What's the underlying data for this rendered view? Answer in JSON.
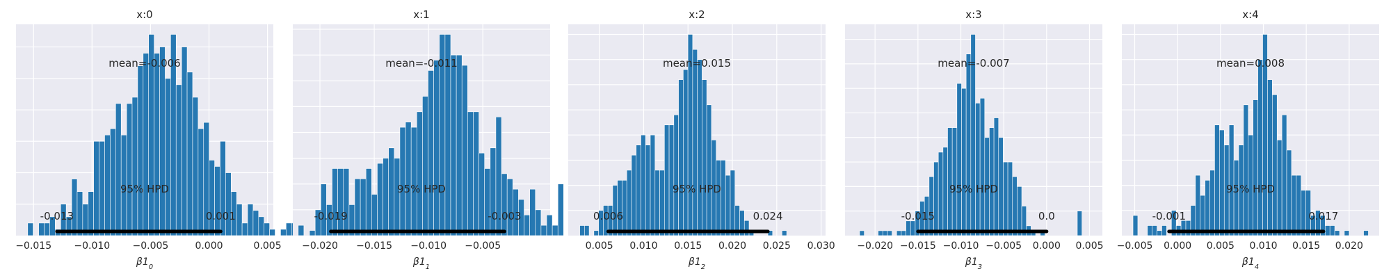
{
  "chart_data": [
    {
      "type": "bar",
      "title": "x:0",
      "xlabel": "β1",
      "xlabel_sub": "0",
      "xlim": [
        -0.0165,
        0.0055
      ],
      "xticks": [
        -0.015,
        -0.01,
        -0.005,
        0.0,
        0.005
      ],
      "xtick_labels": [
        "−0.015",
        "−0.010",
        "−0.005",
        "0.000",
        "0.005"
      ],
      "mean_label": "mean=-0.006",
      "hpd_label": "95% HPD",
      "hpd": [
        -0.013,
        0.001
      ],
      "hpd_low_label": "-0.013",
      "hpd_high_label": "0.001",
      "bins": {
        "start": -0.0155,
        "width": 0.00047,
        "counts": [
          2,
          0,
          2,
          2,
          3,
          1,
          5,
          3,
          9,
          7,
          5,
          7,
          15,
          15,
          16,
          17,
          21,
          16,
          21,
          22,
          27,
          29,
          32,
          29,
          30,
          25,
          32,
          24,
          30,
          26,
          22,
          17,
          18,
          12,
          11,
          15,
          10,
          7,
          5,
          2,
          5,
          4,
          3,
          2,
          1,
          0,
          1,
          2,
          2
        ]
      }
    },
    {
      "type": "bar",
      "title": "x:1",
      "xlabel": "β1",
      "xlabel_sub": "1",
      "xlim": [
        -0.0225,
        0.0012
      ],
      "xticks": [
        -0.02,
        -0.015,
        -0.01,
        -0.005
      ],
      "xtick_labels": [
        "−0.020",
        "−0.015",
        "−0.010",
        "−0.005"
      ],
      "mean_label": "mean=-0.011",
      "hpd_label": "95% HPD",
      "hpd": [
        -0.019,
        -0.003
      ],
      "hpd_low_label": "-0.019",
      "hpd_high_label": "-0.003",
      "bins": {
        "start": -0.022,
        "width": 0.00052,
        "counts": [
          2,
          0,
          1,
          5,
          10,
          6,
          13,
          13,
          13,
          6,
          11,
          11,
          13,
          8,
          14,
          15,
          17,
          15,
          21,
          22,
          21,
          24,
          27,
          32,
          34,
          39,
          39,
          35,
          35,
          33,
          24,
          24,
          16,
          13,
          17,
          23,
          12,
          11,
          9,
          7,
          4,
          9,
          5,
          2,
          4,
          2,
          10
        ]
      }
    },
    {
      "type": "bar",
      "title": "x:2",
      "xlabel": "β1",
      "xlabel_sub": "2",
      "xlim": [
        0.0015,
        0.0305
      ],
      "xticks": [
        0.005,
        0.01,
        0.015,
        0.02,
        0.025,
        0.03
      ],
      "xtick_labels": [
        "0.005",
        "0.010",
        "0.015",
        "0.020",
        "0.025",
        "0.030"
      ],
      "mean_label": "mean=0.015",
      "hpd_label": "95% HPD",
      "hpd": [
        0.006,
        0.024
      ],
      "hpd_low_label": "0.006",
      "hpd_high_label": "0.024",
      "bins": {
        "start": 0.0028,
        "width": 0.00053,
        "counts": [
          2,
          2,
          0,
          1,
          5,
          6,
          6,
          10,
          11,
          11,
          13,
          16,
          18,
          20,
          18,
          20,
          13,
          13,
          22,
          22,
          24,
          31,
          33,
          40,
          37,
          35,
          31,
          26,
          19,
          15,
          15,
          12,
          13,
          6,
          5,
          3,
          1,
          0,
          0,
          0,
          1,
          0,
          0,
          1
        ]
      }
    },
    {
      "type": "bar",
      "title": "x:3",
      "xlabel": "β1",
      "xlabel_sub": "3",
      "xlim": [
        -0.0235,
        0.0065
      ],
      "xticks": [
        -0.02,
        -0.015,
        -0.01,
        -0.005,
        0.0,
        0.005
      ],
      "xtick_labels": [
        "−0.020",
        "−0.015",
        "−0.010",
        "−0.005",
        "0.000",
        "0.005"
      ],
      "mean_label": "mean=-0.007",
      "hpd_label": "95% HPD",
      "hpd": [
        -0.015,
        0.0
      ],
      "hpd_low_label": "-0.015",
      "hpd_high_label": "0.0",
      "bins": {
        "start": -0.0218,
        "width": 0.00054,
        "counts": [
          1,
          0,
          0,
          0,
          1,
          1,
          1,
          0,
          1,
          1,
          3,
          3,
          5,
          7,
          8,
          12,
          15,
          17,
          18,
          22,
          22,
          31,
          30,
          37,
          41,
          27,
          28,
          20,
          22,
          24,
          20,
          15,
          15,
          12,
          10,
          6,
          2,
          1,
          0,
          1,
          0,
          0,
          0,
          0,
          0,
          0,
          0,
          5
        ]
      }
    },
    {
      "type": "bar",
      "title": "x:4",
      "xlabel": "β1",
      "xlabel_sub": "4",
      "xlim": [
        -0.0065,
        0.0235
      ],
      "xticks": [
        -0.005,
        0.0,
        0.005,
        0.01,
        0.015,
        0.02
      ],
      "xtick_labels": [
        "−0.005",
        "0.000",
        "0.005",
        "0.010",
        "0.015",
        "0.020"
      ],
      "mean_label": "mean=0.008",
      "hpd_label": "95% HPD",
      "hpd": [
        -0.001,
        0.017
      ],
      "hpd_low_label": "-0.001",
      "hpd_high_label": "0.017",
      "bins": {
        "start": -0.0052,
        "width": 0.00056,
        "counts": [
          4,
          0,
          0,
          2,
          2,
          1,
          2,
          0,
          5,
          2,
          3,
          3,
          6,
          12,
          8,
          11,
          13,
          22,
          21,
          18,
          22,
          15,
          18,
          26,
          20,
          27,
          35,
          40,
          31,
          28,
          19,
          24,
          17,
          12,
          12,
          9,
          9,
          4,
          5,
          4,
          2,
          2,
          1,
          0,
          1,
          0,
          0,
          0,
          1
        ]
      }
    }
  ]
}
